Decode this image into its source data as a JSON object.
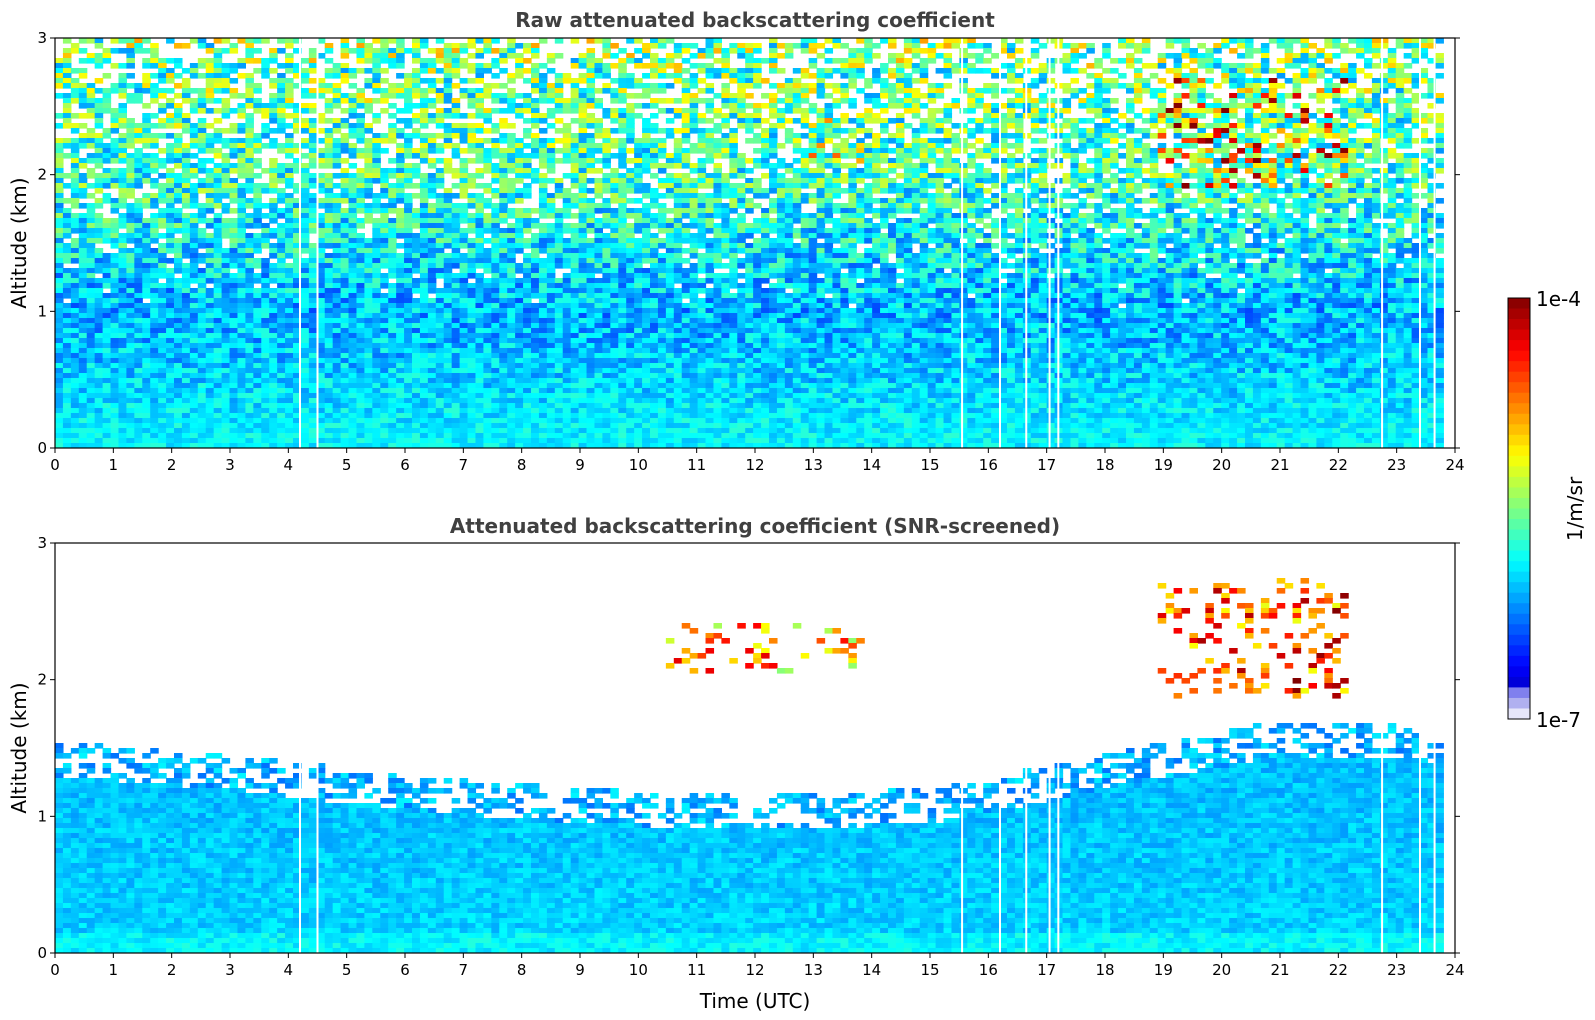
{
  "chart_data": [
    {
      "type": "heatmap",
      "title": "Raw attenuated backscattering coefficient",
      "xlabel": "",
      "ylabel": "Altitude (km)",
      "xlim": [
        0,
        24
      ],
      "ylim": [
        0,
        3
      ],
      "xticks": [
        "0",
        "1",
        "2",
        "3",
        "4",
        "5",
        "6",
        "7",
        "8",
        "9",
        "10",
        "11",
        "12",
        "13",
        "14",
        "15",
        "16",
        "17",
        "18",
        "19",
        "20",
        "21",
        "22",
        "23",
        "24"
      ],
      "yticks": [
        "0",
        "1",
        "2",
        "3"
      ],
      "data_end_time": 23.8,
      "gap_times": [
        4.2,
        4.5,
        15.55,
        16.2,
        16.65,
        17.05,
        17.2,
        22.75,
        23.4,
        23.65
      ],
      "profile": [
        {
          "altitude": 0.1,
          "log_value": -5.9
        },
        {
          "altitude": 0.5,
          "log_value": -6.0
        },
        {
          "altitude": 1.0,
          "log_value": -6.1
        },
        {
          "altitude": 1.5,
          "log_value": -5.9
        },
        {
          "altitude": 2.0,
          "log_value": -5.7
        },
        {
          "altitude": 2.5,
          "log_value": -5.6
        },
        {
          "altitude": 3.0,
          "log_value": -5.5
        }
      ],
      "cloud_features": [
        {
          "time_start": 18.9,
          "time_end": 22.2,
          "alt_min": 1.9,
          "alt_max": 2.7,
          "max_log_value": -4.0
        },
        {
          "time_start": 12.9,
          "time_end": 13.9,
          "alt_min": 2.1,
          "alt_max": 2.4,
          "max_log_value": -4.3
        }
      ],
      "screened": false
    },
    {
      "type": "heatmap",
      "title": "Attenuated backscattering coefficient (SNR-screened)",
      "xlabel": "Time (UTC)",
      "ylabel": "Altitude (km)",
      "xlim": [
        0,
        24
      ],
      "ylim": [
        0,
        3
      ],
      "xticks": [
        "0",
        "1",
        "2",
        "3",
        "4",
        "5",
        "6",
        "7",
        "8",
        "9",
        "10",
        "11",
        "12",
        "13",
        "14",
        "15",
        "16",
        "17",
        "18",
        "19",
        "20",
        "21",
        "22",
        "23",
        "24"
      ],
      "yticks": [
        "0",
        "1",
        "2",
        "3"
      ],
      "data_end_time": 23.8,
      "gap_times": [
        4.2,
        4.5,
        15.55,
        16.2,
        16.65,
        17.05,
        17.2,
        22.75,
        23.4,
        23.65
      ],
      "boundary_layer_top": [
        {
          "time": 0,
          "altitude": 1.3
        },
        {
          "time": 3,
          "altitude": 1.2
        },
        {
          "time": 6,
          "altitude": 1.05
        },
        {
          "time": 9,
          "altitude": 0.95
        },
        {
          "time": 12,
          "altitude": 0.9
        },
        {
          "time": 15,
          "altitude": 0.95
        },
        {
          "time": 18,
          "altitude": 1.2
        },
        {
          "time": 21,
          "altitude": 1.45
        },
        {
          "time": 24,
          "altitude": 1.4
        }
      ],
      "cloud_features": [
        {
          "time_start": 18.9,
          "time_end": 22.2,
          "alt_min": 1.85,
          "alt_max": 2.75,
          "max_log_value": -4.0
        },
        {
          "time_start": 10.5,
          "time_end": 13.9,
          "alt_min": 2.05,
          "alt_max": 2.4,
          "max_log_value": -4.3
        }
      ],
      "screened": true
    }
  ],
  "colorbar": {
    "label": "1/m/sr",
    "max_label": "1e-4",
    "min_label": "1e-7",
    "min_log": -7,
    "max_log": -4,
    "colormap": "jet",
    "colors": [
      "#00007f",
      "#0000ff",
      "#007fff",
      "#00ffff",
      "#7fff7f",
      "#ffff00",
      "#ff7f00",
      "#ff0000",
      "#7f0000"
    ]
  }
}
